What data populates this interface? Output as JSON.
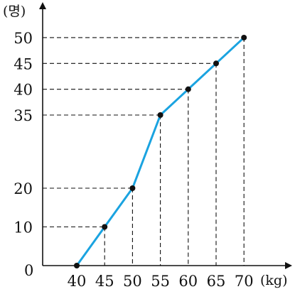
{
  "chart_data": {
    "type": "line",
    "title": "",
    "xlabel": "(kg)",
    "ylabel": "(명)",
    "origin_label": "0",
    "xlim": [
      40,
      70
    ],
    "ylim": [
      0,
      50
    ],
    "x_ticks": [
      40,
      45,
      50,
      55,
      60,
      65,
      70
    ],
    "y_ticks": [
      10,
      20,
      35,
      40,
      45,
      50
    ],
    "y_axis_break": true,
    "grid": false,
    "guide_lines": "dashed",
    "series": [
      {
        "x": [
          40,
          45,
          50,
          55,
          60,
          65,
          70
        ],
        "y": [
          0,
          10,
          20,
          35,
          40,
          45,
          50
        ],
        "color": "#1aa3e0",
        "marker": "filled-circle"
      }
    ]
  }
}
